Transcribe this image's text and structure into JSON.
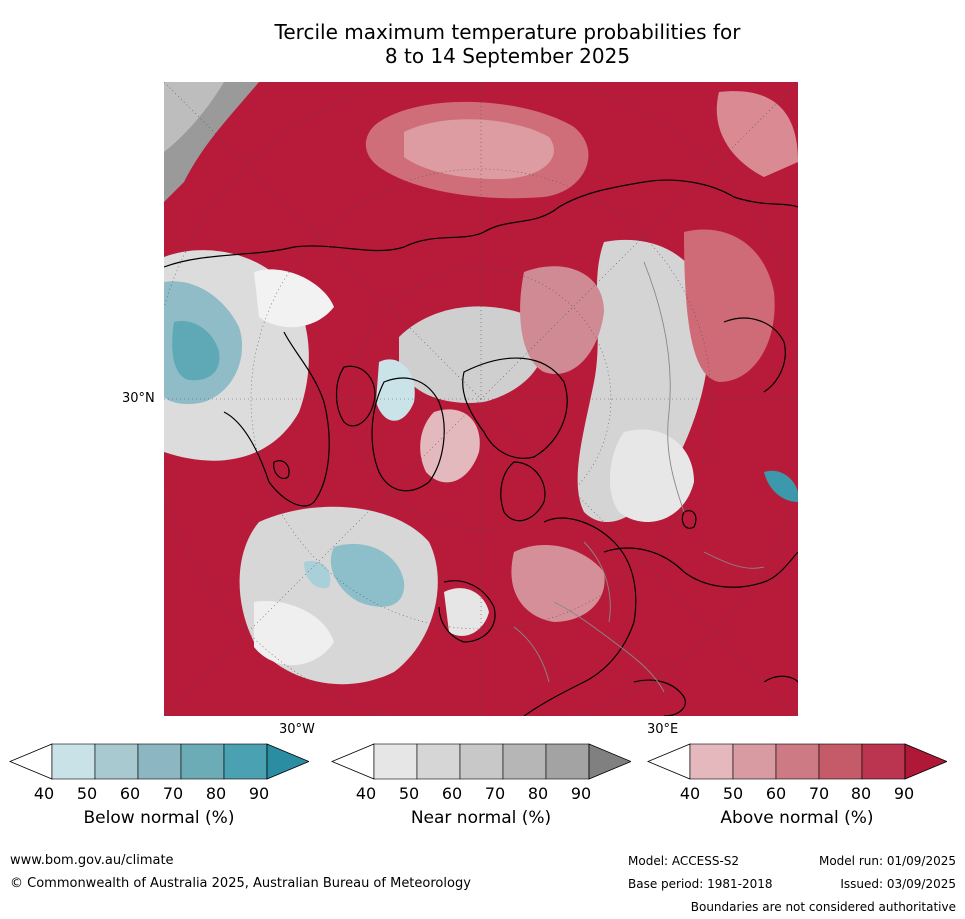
{
  "title": {
    "line1": "Tercile maximum temperature probabilities for",
    "line2": "8 to 14 September 2025"
  },
  "map": {
    "projection": "north-polar-stereographic",
    "ocean_above_normal_color": "#b81b3a",
    "lat_label": "30°N",
    "lon_labels": [
      "30°W",
      "30°E"
    ]
  },
  "legends": [
    {
      "label": "Below normal (%)",
      "ticks": [
        "40",
        "50",
        "60",
        "70",
        "80",
        "90"
      ],
      "colors": [
        "#ffffff",
        "#c8e2e8",
        "#a7c9cf",
        "#8cb7c2",
        "#6cacb7",
        "#4aa1b1",
        "#2a8da1"
      ]
    },
    {
      "label": "Near normal (%)",
      "ticks": [
        "40",
        "50",
        "60",
        "70",
        "80",
        "90"
      ],
      "colors": [
        "#ffffff",
        "#e6e6e6",
        "#d6d6d6",
        "#c8c8c8",
        "#b6b6b6",
        "#a3a3a3",
        "#808080"
      ]
    },
    {
      "label": "Above normal (%)",
      "ticks": [
        "40",
        "50",
        "60",
        "70",
        "80",
        "90"
      ],
      "colors": [
        "#ffffff",
        "#e4b8bd",
        "#d89ba1",
        "#ce7a84",
        "#c55b69",
        "#bc3550",
        "#b01838"
      ]
    }
  ],
  "footer": {
    "website": "www.bom.gov.au/climate",
    "copyright": "© Commonwealth of Australia 2025, Australian Bureau of Meteorology",
    "model": "Model: ACCESS-S2",
    "model_run": "Model run: 01/09/2025",
    "base_period": "Base period: 1981-2018",
    "issued": "Issued: 03/09/2025",
    "disclaimer": "Boundaries are not considered authoritative"
  }
}
